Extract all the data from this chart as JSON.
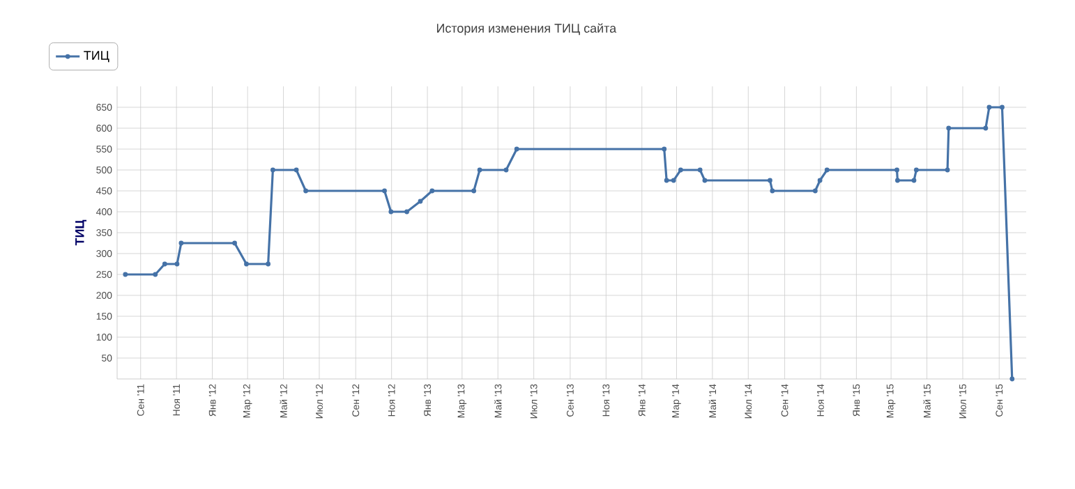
{
  "chart_data": {
    "type": "line",
    "title": "История изменения ТИЦ сайта",
    "ylabel": "ТИЦ",
    "xlim": [
      "2011-07-23",
      "2015-10-17"
    ],
    "ylim": [
      0,
      700
    ],
    "xticks": [
      {
        "value": "2011-09",
        "label": "Сен '11"
      },
      {
        "value": "2011-11",
        "label": "Ноя '11"
      },
      {
        "value": "2012-01",
        "label": "Янв '12"
      },
      {
        "value": "2012-03",
        "label": "Мар '12"
      },
      {
        "value": "2012-05",
        "label": "Май '12"
      },
      {
        "value": "2012-07",
        "label": "Июл '12"
      },
      {
        "value": "2012-09",
        "label": "Сен '12"
      },
      {
        "value": "2012-11",
        "label": "Ноя '12"
      },
      {
        "value": "2013-01",
        "label": "Янв '13"
      },
      {
        "value": "2013-03",
        "label": "Мар '13"
      },
      {
        "value": "2013-05",
        "label": "Май '13"
      },
      {
        "value": "2013-07",
        "label": "Июл '13"
      },
      {
        "value": "2013-09",
        "label": "Сен '13"
      },
      {
        "value": "2013-11",
        "label": "Ноя '13"
      },
      {
        "value": "2014-01",
        "label": "Янв '14"
      },
      {
        "value": "2014-03",
        "label": "Мар '14"
      },
      {
        "value": "2014-05",
        "label": "Май '14"
      },
      {
        "value": "2014-07",
        "label": "Июл '14"
      },
      {
        "value": "2014-09",
        "label": "Сен '14"
      },
      {
        "value": "2014-11",
        "label": "Ноя '14"
      },
      {
        "value": "2015-01",
        "label": "Янв '15"
      },
      {
        "value": "2015-03",
        "label": "Мар '15"
      },
      {
        "value": "2015-05",
        "label": "Май '15"
      },
      {
        "value": "2015-07",
        "label": "Июл '15"
      },
      {
        "value": "2015-09",
        "label": "Сен '15"
      }
    ],
    "yticks": [
      50,
      100,
      150,
      200,
      250,
      300,
      350,
      400,
      450,
      500,
      550,
      600,
      650
    ],
    "grid": true,
    "legend": "top left",
    "marker": "circle",
    "line_style": "solid",
    "x": [
      "2011-08-06",
      "2011-09-26",
      "2011-10-12",
      "2011-11-02",
      "2011-11-09",
      "2012-02-08",
      "2012-02-28",
      "2012-04-05",
      "2012-04-13",
      "2012-05-23",
      "2012-06-08",
      "2012-10-20",
      "2012-10-31",
      "2012-11-27",
      "2012-12-20",
      "2013-01-09",
      "2013-03-21",
      "2013-03-31",
      "2013-05-15",
      "2013-06-02",
      "2014-02-08",
      "2014-02-12",
      "2014-02-24",
      "2014-03-08",
      "2014-04-10",
      "2014-04-18",
      "2014-08-07",
      "2014-08-11",
      "2014-10-23",
      "2014-10-31",
      "2014-11-12",
      "2015-03-11",
      "2015-03-12",
      "2015-04-09",
      "2015-04-13",
      "2015-06-05",
      "2015-06-07",
      "2015-08-09",
      "2015-08-15",
      "2015-09-06",
      "2015-09-23"
    ],
    "series": [
      {
        "name": "ТИЦ",
        "color": "#4572a7",
        "values": [
          250,
          250,
          275,
          275,
          325,
          325,
          275,
          275,
          500,
          500,
          450,
          450,
          400,
          400,
          425,
          450,
          450,
          500,
          500,
          550,
          550,
          475,
          475,
          500,
          500,
          475,
          475,
          450,
          450,
          475,
          500,
          500,
          475,
          475,
          500,
          500,
          600,
          600,
          650,
          650,
          0
        ]
      }
    ]
  }
}
